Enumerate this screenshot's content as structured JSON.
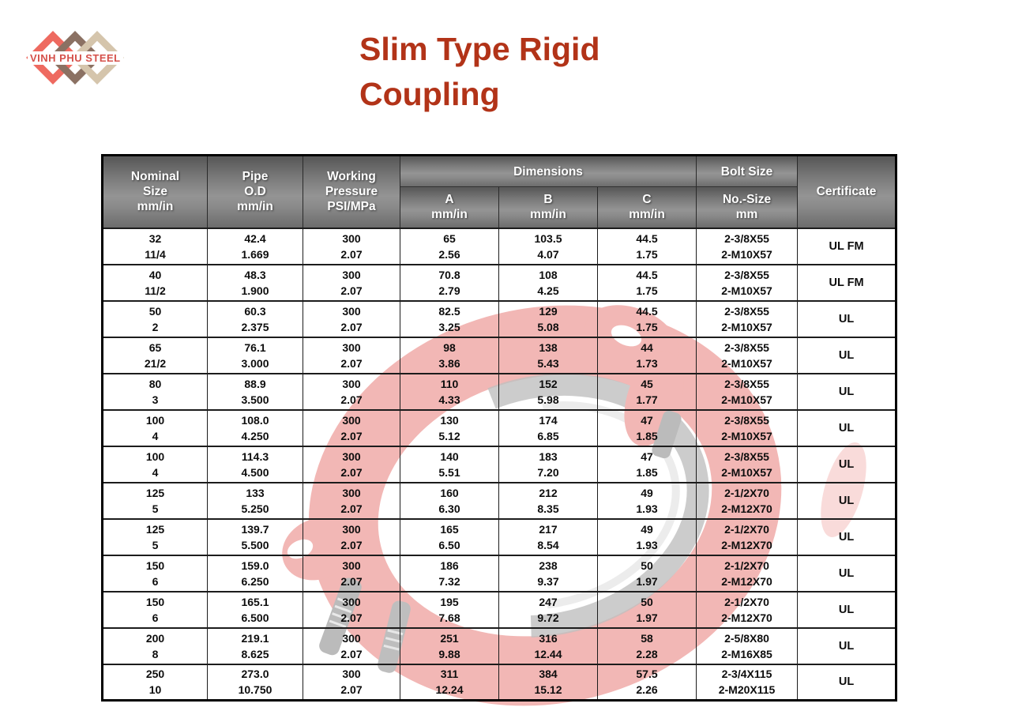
{
  "logo": {
    "text": "VINH PHU STEEL"
  },
  "title": {
    "line1": "Slim Type Rigid",
    "line2": "Coupling"
  },
  "colors": {
    "title_red": "#b23318",
    "logo_red": "#ee6a60",
    "logo_brown": "#8b7163",
    "logo_tan": "#d5c5ac",
    "header_gray": "#7b7b7b",
    "header_text": "#ffffff",
    "watermark_red": "#d9231b",
    "watermark_gasket": "#3c3c3c"
  },
  "table": {
    "header": {
      "nominal": "Nominal\nSize\nmm/in",
      "pipe": "Pipe\nO.D\nmm/in",
      "pressure": "Working\nPressure\nPSI/MPa",
      "dimensions": "Dimensions",
      "dim_a": "A\nmm/in",
      "dim_b": "B\nmm/in",
      "dim_c": "C\nmm/in",
      "bolt": "Bolt  Size",
      "bolt_sub": "No.-Size\nmm",
      "certificate": "Certificate"
    },
    "rows": [
      [
        "32\n11/4",
        "42.4\n1.669",
        "300\n2.07",
        "65\n2.56",
        "103.5\n4.07",
        "44.5\n1.75",
        "2-3/8X55\n2-M10X57",
        "UL FM"
      ],
      [
        "40\n11/2",
        "48.3\n1.900",
        "300\n2.07",
        "70.8\n2.79",
        "108\n4.25",
        "44.5\n1.75",
        "2-3/8X55\n2-M10X57",
        "UL FM"
      ],
      [
        "50\n2",
        "60.3\n2.375",
        "300\n2.07",
        "82.5\n3.25",
        "129\n5.08",
        "44.5\n1.75",
        "2-3/8X55\n2-M10X57",
        "UL"
      ],
      [
        "65\n21/2",
        "76.1\n3.000",
        "300\n2.07",
        "98\n3.86",
        "138\n5.43",
        "44\n1.73",
        "2-3/8X55\n2-M10X57",
        "UL"
      ],
      [
        "80\n3",
        "88.9\n3.500",
        "300\n2.07",
        "110\n4.33",
        "152\n5.98",
        "45\n1.77",
        "2-3/8X55\n2-M10X57",
        "UL"
      ],
      [
        "100\n4",
        "108.0\n4.250",
        "300\n2.07",
        "130\n5.12",
        "174\n6.85",
        "47\n1.85",
        "2-3/8X55\n2-M10X57",
        "UL"
      ],
      [
        "100\n4",
        "114.3\n4.500",
        "300\n2.07",
        "140\n5.51",
        "183\n7.20",
        "47\n1.85",
        "2-3/8X55\n2-M10X57",
        "UL"
      ],
      [
        "125\n5",
        "133\n5.250",
        "300\n2.07",
        "160\n6.30",
        "212\n8.35",
        "49\n1.93",
        "2-1/2X70\n2-M12X70",
        "UL"
      ],
      [
        "125\n5",
        "139.7\n5.500",
        "300\n2.07",
        "165\n6.50",
        "217\n8.54",
        "49\n1.93",
        "2-1/2X70\n2-M12X70",
        "UL"
      ],
      [
        "150\n6",
        "159.0\n6.250",
        "300\n2.07",
        "186\n7.32",
        "238\n9.37",
        "50\n1.97",
        "2-1/2X70\n2-M12X70",
        "UL"
      ],
      [
        "150\n6",
        "165.1\n6.500",
        "300\n2.07",
        "195\n7.68",
        "247\n9.72",
        "50\n1.97",
        "2-1/2X70\n2-M12X70",
        "UL"
      ],
      [
        "200\n8",
        "219.1\n8.625",
        "300\n2.07",
        "251\n9.88",
        "316\n12.44",
        "58\n2.28",
        "2-5/8X80\n2-M16X85",
        "UL"
      ],
      [
        "250\n10",
        "273.0\n10.750",
        "300\n2.07",
        "311\n12.24",
        "384\n15.12",
        "57.5\n2.26",
        "2-3/4X115\n2-M20X115",
        "UL"
      ]
    ]
  }
}
